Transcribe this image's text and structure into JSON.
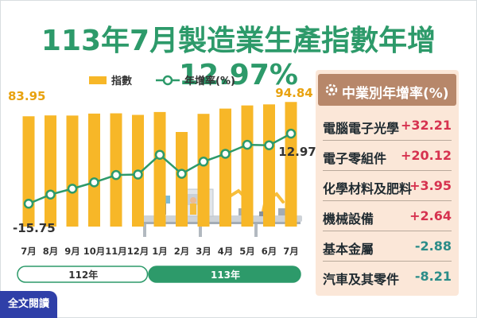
{
  "title": "113年7月製造業生產指數年增12.97%",
  "chart_data": {
    "type": "bar",
    "categories": [
      "7月",
      "8月",
      "9月",
      "10月",
      "11月",
      "12月",
      "1月",
      "2月",
      "3月",
      "4月",
      "5月",
      "6月",
      "7月"
    ],
    "year_groups": [
      {
        "label": "112年",
        "span": 6
      },
      {
        "label": "113年",
        "span": 7
      }
    ],
    "series": [
      {
        "name": "指數",
        "type": "bar",
        "values": [
          83.95,
          84.6,
          84.5,
          86.0,
          86.2,
          85.0,
          87.2,
          72.0,
          85.8,
          89.8,
          92.2,
          93.0,
          94.84
        ]
      },
      {
        "name": "年增率(%)",
        "type": "line",
        "values": [
          -15.75,
          -12.0,
          -9.6,
          -7.0,
          -4.0,
          -3.8,
          4.3,
          -3.5,
          1.5,
          4.7,
          8.4,
          8.2,
          12.97
        ]
      }
    ],
    "data_labels": {
      "first_bar": "83.95",
      "last_bar": "94.84",
      "first_line": "-15.75",
      "last_line": "12.97"
    },
    "legend": {
      "items": [
        "指數",
        "年增率(%)"
      ],
      "placement": "top"
    }
  },
  "sidebar": {
    "title": "中業別年增率(%)",
    "rows": [
      {
        "name": "電腦電子光學",
        "value": "+32.21"
      },
      {
        "name": "電子零組件",
        "value": "+20.12"
      },
      {
        "name": "化學材料及肥料",
        "value": "+3.95"
      },
      {
        "name": "機械設備",
        "value": "+2.64"
      },
      {
        "name": "基本金屬",
        "value": "-2.88"
      },
      {
        "name": "汽車及其零件",
        "value": "-8.21"
      }
    ]
  },
  "colors": {
    "bar": "#f7b728",
    "line": "#2d9a6a",
    "positive": "#d6324f",
    "negative": "#2b8c88",
    "title": "#2d9a6a",
    "panel_head": "#b7876a",
    "panel_bg": "#fbe7d8",
    "button": "#2f3fa8"
  },
  "button": {
    "label": "全文閱讀",
    "icon": "read-icon"
  },
  "icons": {
    "sidebar": "gear-chart-icon",
    "scene": "factory-robot-arms-illustration"
  }
}
